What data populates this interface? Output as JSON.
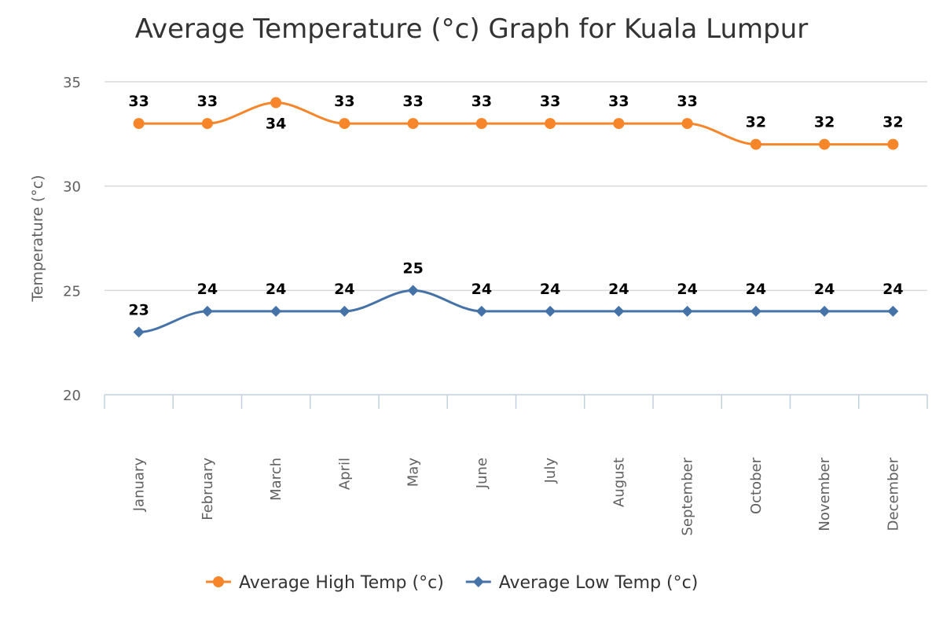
{
  "chart_data": {
    "type": "line",
    "title": "Average Temperature (°c) Graph for Kuala Lumpur",
    "xlabel": "",
    "ylabel": "Temperature (°c)",
    "categories": [
      "January",
      "February",
      "March",
      "April",
      "May",
      "June",
      "July",
      "August",
      "September",
      "October",
      "November",
      "December"
    ],
    "ylim": [
      20,
      35
    ],
    "yticks": [
      20,
      25,
      30,
      35
    ],
    "grid": true,
    "legend_position": "bottom",
    "smooth": true,
    "data_labels": true,
    "series": [
      {
        "name": "Average High Temp (°c)",
        "color": "#f7862b",
        "marker": "circle",
        "values": [
          33,
          33,
          34,
          33,
          33,
          33,
          33,
          33,
          33,
          32,
          32,
          32
        ]
      },
      {
        "name": "Average Low Temp (°c)",
        "color": "#4572a7",
        "marker": "diamond",
        "values": [
          23,
          24,
          24,
          24,
          25,
          24,
          24,
          24,
          24,
          24,
          24,
          24
        ]
      }
    ]
  }
}
